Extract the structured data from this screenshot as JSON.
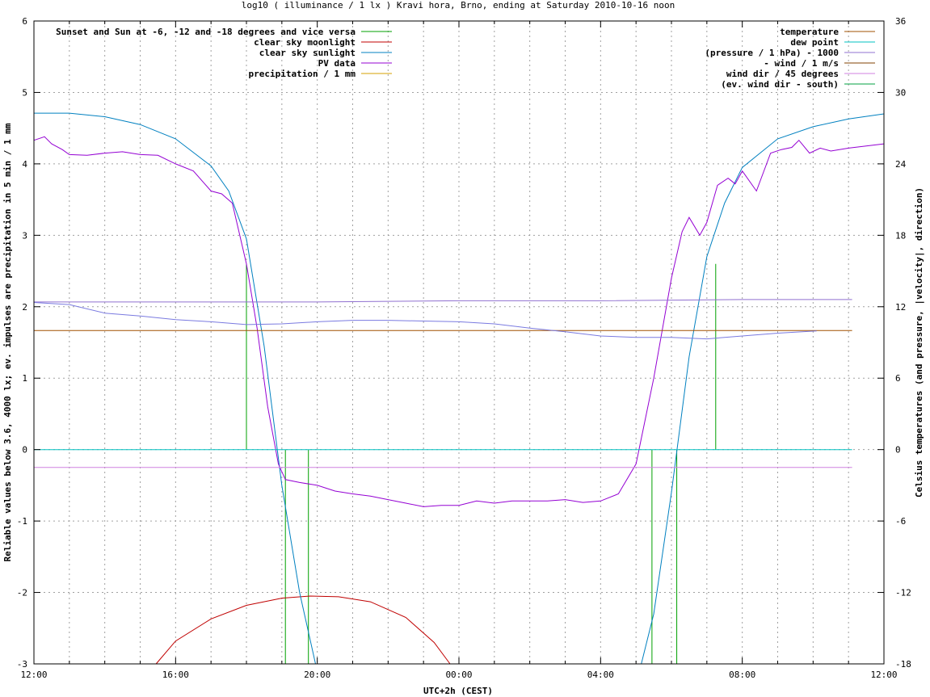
{
  "chart_data": {
    "type": "line",
    "title": "log10 ( illuminance / 1 lx ) Kravi hora, Brno, ending at Saturday 2010-10-16 noon",
    "xlabel": "UTC+2h (CEST)",
    "ylabel_left": "Reliable values below 3.6, 4000 lx; ev. impulses are precipitation in 5 min / 1 mm",
    "ylabel_right": "Celsius temperatures (and pressure, |velocity|, direction)",
    "x_unit": "hours since 12:00 UTC+2h",
    "xlim": [
      0,
      24
    ],
    "ylim_left": [
      -3,
      6
    ],
    "ylim_right": [
      -18,
      36
    ],
    "x_ticks": [
      {
        "v": 0,
        "label": "12:00"
      },
      {
        "v": 4,
        "label": "16:00"
      },
      {
        "v": 8,
        "label": "20:00"
      },
      {
        "v": 12,
        "label": "00:00"
      },
      {
        "v": 16,
        "label": "04:00"
      },
      {
        "v": 20,
        "label": "08:00"
      },
      {
        "v": 24,
        "label": "12:00"
      }
    ],
    "y_ticks_left": [
      {
        "v": -3,
        "label": "-3"
      },
      {
        "v": -2,
        "label": "-2"
      },
      {
        "v": -1,
        "label": "-1"
      },
      {
        "v": 0,
        "label": "0"
      },
      {
        "v": 1,
        "label": "1"
      },
      {
        "v": 2,
        "label": "2"
      },
      {
        "v": 3,
        "label": "3"
      },
      {
        "v": 4,
        "label": "4"
      },
      {
        "v": 5,
        "label": "5"
      },
      {
        "v": 6,
        "label": "6"
      }
    ],
    "y_ticks_right": [
      {
        "v": -18,
        "label": "-18"
      },
      {
        "v": -12,
        "label": "-12"
      },
      {
        "v": -6,
        "label": "-6"
      },
      {
        "v": 0,
        "label": "0"
      },
      {
        "v": 6,
        "label": "6"
      },
      {
        "v": 12,
        "label": "12"
      },
      {
        "v": 18,
        "label": "18"
      },
      {
        "v": 24,
        "label": "24"
      },
      {
        "v": 30,
        "label": "30"
      },
      {
        "v": 36,
        "label": "36"
      }
    ],
    "grid": true,
    "legend_left_position": "top-left",
    "legend_right_position": "top-right",
    "series": [
      {
        "name": "Sunset and Sun at -6, -12 and -18 degrees and vice versa",
        "color": "#00a000",
        "kind": "impulse",
        "axis": "left",
        "points": [
          [
            6.0,
            2.6
          ],
          [
            7.1,
            -3.0
          ],
          [
            7.75,
            -3.0
          ],
          [
            17.45,
            -3.0
          ],
          [
            18.15,
            -3.0
          ],
          [
            19.25,
            2.6
          ]
        ]
      },
      {
        "name": "clear sky moonlight",
        "color": "#c00000",
        "kind": "line",
        "axis": "left",
        "x": [
          3.45,
          4.0,
          5.0,
          6.0,
          7.0,
          7.8,
          8.6,
          9.5,
          10.5,
          11.3,
          11.75
        ],
        "y": [
          -3.0,
          -2.68,
          -2.37,
          -2.18,
          -2.08,
          -2.05,
          -2.06,
          -2.13,
          -2.35,
          -2.7,
          -3.0
        ]
      },
      {
        "name": "clear sky sunlight",
        "color": "#0080c0",
        "kind": "line",
        "axis": "left",
        "x": [
          0.0,
          1.0,
          2.0,
          3.0,
          4.0,
          5.0,
          5.5,
          6.0,
          6.5,
          7.0,
          7.5,
          7.95,
          17.15,
          17.5,
          18.0,
          18.5,
          19.0,
          19.5,
          20.0,
          21.0,
          22.0,
          23.0,
          24.0
        ],
        "y": [
          4.71,
          4.71,
          4.66,
          4.55,
          4.35,
          3.97,
          3.62,
          2.95,
          1.45,
          -0.5,
          -2.0,
          -3.0,
          -3.0,
          -2.3,
          -0.6,
          1.3,
          2.7,
          3.45,
          3.95,
          4.35,
          4.52,
          4.63,
          4.7
        ]
      },
      {
        "name": "PV data",
        "color": "#9400d3",
        "kind": "line",
        "axis": "left",
        "x": [
          0.0,
          0.3,
          0.5,
          0.8,
          1.0,
          1.5,
          2.0,
          2.5,
          3.0,
          3.5,
          4.0,
          4.5,
          5.0,
          5.3,
          5.6,
          6.0,
          6.3,
          6.6,
          6.9,
          7.1,
          7.5,
          8.0,
          8.5,
          9.0,
          9.5,
          10.0,
          10.5,
          11.0,
          11.5,
          12.0,
          12.5,
          13.0,
          13.5,
          14.0,
          14.5,
          15.0,
          15.5,
          16.0,
          16.5,
          17.0,
          17.5,
          18.0,
          18.3,
          18.5,
          18.8,
          19.0,
          19.3,
          19.6,
          19.8,
          20.0,
          20.4,
          20.8,
          21.1,
          21.4,
          21.6,
          21.9,
          22.2,
          22.5,
          23.0,
          23.5,
          24.0
        ],
        "y": [
          4.33,
          4.38,
          4.28,
          4.2,
          4.13,
          4.12,
          4.15,
          4.17,
          4.13,
          4.12,
          4.0,
          3.9,
          3.62,
          3.58,
          3.45,
          2.6,
          1.7,
          0.6,
          -0.2,
          -0.42,
          -0.46,
          -0.5,
          -0.58,
          -0.62,
          -0.65,
          -0.7,
          -0.75,
          -0.8,
          -0.78,
          -0.78,
          -0.72,
          -0.75,
          -0.72,
          -0.72,
          -0.72,
          -0.7,
          -0.74,
          -0.72,
          -0.62,
          -0.2,
          1.0,
          2.4,
          3.05,
          3.25,
          3.0,
          3.18,
          3.7,
          3.8,
          3.72,
          3.9,
          3.62,
          4.15,
          4.2,
          4.23,
          4.33,
          4.15,
          4.22,
          4.18,
          4.22,
          4.25,
          4.28
        ]
      },
      {
        "name": "precipitation / 1 mm",
        "color": "#d4a000",
        "kind": "impulse",
        "axis": "left",
        "points": []
      },
      {
        "name": "temperature",
        "color": "#a05000",
        "kind": "line",
        "axis": "right",
        "x": [
          0.0,
          23.1
        ],
        "y": [
          10.0,
          10.0
        ]
      },
      {
        "name": "dew point",
        "color": "#00c0c0",
        "kind": "line",
        "axis": "right",
        "x": [
          0.0,
          23.1
        ],
        "y": [
          0.0,
          0.0
        ]
      },
      {
        "name": "(pressure / 1 hPa) - 1000",
        "color": "#9070d0",
        "kind": "line",
        "axis": "right",
        "x": [
          0.0,
          4.0,
          8.0,
          12.0,
          16.0,
          20.0,
          23.1
        ],
        "y": [
          12.4,
          12.4,
          12.4,
          12.5,
          12.5,
          12.6,
          12.6
        ]
      },
      {
        "name": "- wind / 1 m/s",
        "color": "#804000",
        "kind": "line",
        "axis": "right",
        "x": [],
        "y": []
      },
      {
        "name": "wind dir / 45 degrees",
        "color": "#d080e0",
        "kind": "line",
        "axis": "right",
        "x": [
          0.0,
          23.1
        ],
        "y": [
          -1.5,
          -1.5
        ]
      },
      {
        "name": "(ev. wind dir - south)",
        "color": "#00a040",
        "kind": "line",
        "axis": "right",
        "x": [],
        "y": []
      },
      {
        "name": "",
        "color": "#7a7ae0",
        "kind": "line",
        "axis": "left",
        "x": [
          0.0,
          1.0,
          2.0,
          3.0,
          4.0,
          5.0,
          6.0,
          7.0,
          8.0,
          9.0,
          10.0,
          11.0,
          12.0,
          13.0,
          14.0,
          15.0,
          16.0,
          17.0,
          18.0,
          19.0,
          20.0,
          21.0,
          22.1
        ],
        "y": [
          2.06,
          2.03,
          1.91,
          1.87,
          1.82,
          1.79,
          1.75,
          1.76,
          1.79,
          1.81,
          1.81,
          1.8,
          1.79,
          1.76,
          1.7,
          1.65,
          1.59,
          1.57,
          1.57,
          1.55,
          1.59,
          1.63,
          1.66
        ]
      }
    ],
    "legend_left": [
      {
        "label": "Sunset and Sun at -6, -12 and -18 degrees and vice versa",
        "color": "#00a000"
      },
      {
        "label": "clear sky moonlight",
        "color": "#c00000"
      },
      {
        "label": "clear sky sunlight",
        "color": "#0080c0"
      },
      {
        "label": "PV data",
        "color": "#9400d3"
      },
      {
        "label": "precipitation / 1 mm",
        "color": "#d4a000"
      }
    ],
    "legend_right": [
      {
        "label": "temperature",
        "color": "#a05000"
      },
      {
        "label": "dew point",
        "color": "#00c0c0"
      },
      {
        "label": "(pressure / 1 hPa) - 1000",
        "color": "#9070d0"
      },
      {
        "label": "- wind / 1 m/s",
        "color": "#804000"
      },
      {
        "label": "wind dir / 45 degrees",
        "color": "#d080e0"
      },
      {
        "label": "(ev. wind dir - south)",
        "color": "#00a040"
      }
    ]
  }
}
